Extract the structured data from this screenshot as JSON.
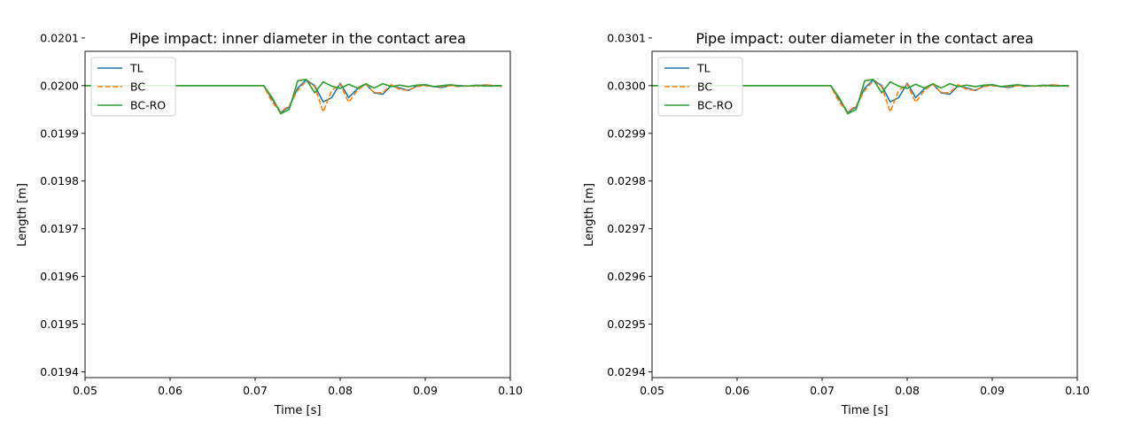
{
  "chart_data": [
    {
      "type": "line",
      "title": "Pipe impact: inner diameter in the contact area",
      "xlabel": "Time [s]",
      "ylabel": "Length [m]",
      "xlim": [
        0.05,
        0.1
      ],
      "ylim": [
        0.019388,
        0.020072
      ],
      "xticks": [
        "0.05",
        "0.06",
        "0.07",
        "0.08",
        "0.09",
        "0.10"
      ],
      "yticks": [
        "0.0194",
        "0.0195",
        "0.0196",
        "0.0197",
        "0.0198",
        "0.0199",
        "0.0200",
        "0.0201"
      ],
      "xtick_values": [
        0.05,
        0.06,
        0.07,
        0.08,
        0.09,
        0.1
      ],
      "ytick_values": [
        0.0194,
        0.0195,
        0.0196,
        0.0197,
        0.0198,
        0.0199,
        0.02,
        0.0201
      ],
      "grid": false,
      "legend_position": "top-left",
      "series": [
        {
          "name": "TL",
          "color": "#1f77b4",
          "style": "solid",
          "x": [
            0.05,
            0.071,
            0.072,
            0.073,
            0.074,
            0.075,
            0.076,
            0.077,
            0.078,
            0.079,
            0.08,
            0.081,
            0.082,
            0.083,
            0.084,
            0.085,
            0.086,
            0.087,
            0.088,
            0.089,
            0.09,
            0.091,
            0.092,
            0.093,
            0.094,
            0.095,
            0.096,
            0.097,
            0.098,
            0.099
          ],
          "y": [
            0.02,
            0.02,
            0.019972,
            0.019944,
            0.019955,
            0.019995,
            0.020012,
            0.02,
            0.019966,
            0.019975,
            0.020005,
            0.019975,
            0.019993,
            0.020003,
            0.019985,
            0.019982,
            0.02,
            0.019995,
            0.01999,
            0.019999,
            0.020002,
            0.019998,
            0.019996,
            0.020001,
            0.02,
            0.019999,
            0.02,
            0.020001,
            0.02,
            0.02
          ]
        },
        {
          "name": "BC",
          "color": "#ff7f0e",
          "style": "dashed",
          "x": [
            0.05,
            0.071,
            0.072,
            0.073,
            0.074,
            0.075,
            0.076,
            0.077,
            0.078,
            0.079,
            0.08,
            0.081,
            0.082,
            0.083,
            0.084,
            0.085,
            0.086,
            0.087,
            0.088,
            0.089,
            0.09,
            0.091,
            0.092,
            0.093,
            0.094,
            0.095,
            0.096,
            0.097,
            0.098,
            0.099
          ],
          "y": [
            0.02,
            0.02,
            0.019965,
            0.019945,
            0.019958,
            0.01999,
            0.02001,
            0.019998,
            0.019945,
            0.01999,
            0.020003,
            0.019965,
            0.01999,
            0.020003,
            0.019985,
            0.019985,
            0.020002,
            0.019992,
            0.01999,
            0.019998,
            0.02,
            0.019998,
            0.019998,
            0.02,
            0.019998,
            0.02,
            0.019998,
            0.020002,
            0.02,
            0.019998
          ]
        },
        {
          "name": "BC-RO",
          "color": "#2ca02c",
          "style": "solid",
          "x": [
            0.05,
            0.071,
            0.072,
            0.073,
            0.074,
            0.075,
            0.076,
            0.077,
            0.078,
            0.079,
            0.08,
            0.081,
            0.082,
            0.083,
            0.084,
            0.085,
            0.086,
            0.087,
            0.088,
            0.089,
            0.09,
            0.091,
            0.092,
            0.093,
            0.094,
            0.095,
            0.096,
            0.097,
            0.098,
            0.099
          ],
          "y": [
            0.02,
            0.02,
            0.019975,
            0.019941,
            0.01995,
            0.02001,
            0.020013,
            0.019985,
            0.020008,
            0.019999,
            0.019994,
            0.020003,
            0.019995,
            0.020004,
            0.019995,
            0.020004,
            0.019998,
            0.020001,
            0.019998,
            0.020001,
            0.020002,
            0.019998,
            0.02,
            0.020002,
            0.019999,
            0.019999,
            0.020001,
            0.019999,
            0.019999,
            0.02
          ]
        }
      ]
    },
    {
      "type": "line",
      "title": "Pipe impact: outer diameter in the contact area",
      "xlabel": "Time [s]",
      "ylabel": "Length [m]",
      "xlim": [
        0.05,
        0.1
      ],
      "ylim": [
        0.029388,
        0.030072
      ],
      "xticks": [
        "0.05",
        "0.06",
        "0.07",
        "0.08",
        "0.09",
        "0.10"
      ],
      "yticks": [
        "0.0294",
        "0.0295",
        "0.0296",
        "0.0297",
        "0.0298",
        "0.0299",
        "0.0300",
        "0.0301"
      ],
      "xtick_values": [
        0.05,
        0.06,
        0.07,
        0.08,
        0.09,
        0.1
      ],
      "ytick_values": [
        0.0294,
        0.0295,
        0.0296,
        0.0297,
        0.0298,
        0.0299,
        0.03,
        0.0301
      ],
      "grid": false,
      "legend_position": "top-left",
      "series": [
        {
          "name": "TL",
          "color": "#1f77b4",
          "style": "solid",
          "x": [
            0.05,
            0.071,
            0.072,
            0.073,
            0.074,
            0.075,
            0.076,
            0.077,
            0.078,
            0.079,
            0.08,
            0.081,
            0.082,
            0.083,
            0.084,
            0.085,
            0.086,
            0.087,
            0.088,
            0.089,
            0.09,
            0.091,
            0.092,
            0.093,
            0.094,
            0.095,
            0.096,
            0.097,
            0.098,
            0.099
          ],
          "y": [
            0.03,
            0.03,
            0.029972,
            0.029944,
            0.029955,
            0.029995,
            0.030012,
            0.03,
            0.029966,
            0.029975,
            0.030005,
            0.029975,
            0.029993,
            0.030003,
            0.029985,
            0.029982,
            0.03,
            0.029995,
            0.02999,
            0.029999,
            0.030002,
            0.029998,
            0.029996,
            0.030001,
            0.03,
            0.029999,
            0.03,
            0.030001,
            0.03,
            0.03
          ]
        },
        {
          "name": "BC",
          "color": "#ff7f0e",
          "style": "dashed",
          "x": [
            0.05,
            0.071,
            0.072,
            0.073,
            0.074,
            0.075,
            0.076,
            0.077,
            0.078,
            0.079,
            0.08,
            0.081,
            0.082,
            0.083,
            0.084,
            0.085,
            0.086,
            0.087,
            0.088,
            0.089,
            0.09,
            0.091,
            0.092,
            0.093,
            0.094,
            0.095,
            0.096,
            0.097,
            0.098,
            0.099
          ],
          "y": [
            0.03,
            0.03,
            0.029965,
            0.029945,
            0.029958,
            0.02999,
            0.03001,
            0.029998,
            0.029945,
            0.02999,
            0.030003,
            0.029965,
            0.02999,
            0.030003,
            0.029985,
            0.029985,
            0.030002,
            0.029992,
            0.02999,
            0.029998,
            0.03,
            0.029998,
            0.029998,
            0.03,
            0.029998,
            0.03,
            0.029998,
            0.030002,
            0.03,
            0.029998
          ]
        },
        {
          "name": "BC-RO",
          "color": "#2ca02c",
          "style": "solid",
          "x": [
            0.05,
            0.071,
            0.072,
            0.073,
            0.074,
            0.075,
            0.076,
            0.077,
            0.078,
            0.079,
            0.08,
            0.081,
            0.082,
            0.083,
            0.084,
            0.085,
            0.086,
            0.087,
            0.088,
            0.089,
            0.09,
            0.091,
            0.092,
            0.093,
            0.094,
            0.095,
            0.096,
            0.097,
            0.098,
            0.099
          ],
          "y": [
            0.03,
            0.03,
            0.029975,
            0.029941,
            0.02995,
            0.03001,
            0.030013,
            0.029985,
            0.030008,
            0.029999,
            0.029994,
            0.030003,
            0.029995,
            0.030004,
            0.029995,
            0.030004,
            0.029998,
            0.030001,
            0.029998,
            0.030001,
            0.030002,
            0.029998,
            0.03,
            0.030002,
            0.029999,
            0.029999,
            0.030001,
            0.029999,
            0.029999,
            0.03
          ]
        }
      ]
    }
  ]
}
